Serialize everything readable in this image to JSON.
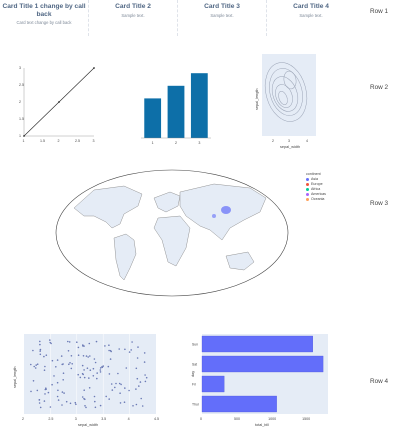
{
  "cards": [
    {
      "title": "Card Title 1 change by call back",
      "text": "Card text change by call back"
    },
    {
      "title": "Card Title 2",
      "text": "Sample text."
    },
    {
      "title": "Card Title 3",
      "text": "Sample text."
    },
    {
      "title": "Card Title 4",
      "text": "Sample text."
    }
  ],
  "rows": [
    "Row 1",
    "Row 2",
    "Row 3",
    "Row 4"
  ],
  "colors": {
    "accent": "#1f77b4",
    "bar": "#0d6fa8",
    "plot_bg": "#e5ecf6",
    "hbar": "#636efa",
    "scatter": "#6b7ab5"
  },
  "line_chart": {
    "type": "line",
    "x": [
      1,
      2,
      3
    ],
    "y": [
      1,
      2,
      3
    ],
    "xticks": [
      "1",
      "1.5",
      "2",
      "2.5",
      "3"
    ],
    "yticks": [
      "1",
      "1.5",
      "2",
      "2.5",
      "3"
    ],
    "xlim": [
      1,
      3
    ],
    "ylim": [
      1,
      3
    ]
  },
  "bar_chart": {
    "type": "bar",
    "categories": [
      "1",
      "2",
      "3"
    ],
    "values": [
      2.2,
      2.9,
      3.6
    ],
    "ylim": [
      0,
      4
    ]
  },
  "density_chart": {
    "type": "heatmap",
    "xlabel": "sepal_width",
    "ylabel": "sepal_length",
    "xticks": [
      "2",
      "3",
      "4"
    ]
  },
  "map": {
    "legend_title": "continent",
    "legend": [
      {
        "name": "Asia",
        "color": "#636efa"
      },
      {
        "name": "Europe",
        "color": "#ef553b"
      },
      {
        "name": "Africa",
        "color": "#00cc96"
      },
      {
        "name": "Americas",
        "color": "#ab63fa"
      },
      {
        "name": "Oceania",
        "color": "#ffa15a"
      }
    ]
  },
  "scatter_chart": {
    "type": "scatter",
    "xlabel": "sepal_width",
    "ylabel": "sepal_length",
    "xticks": [
      "2",
      "2.5",
      "3",
      "3.5",
      "4",
      "4.5"
    ],
    "xlim": [
      2,
      4.5
    ],
    "ylim": [
      4.2,
      8
    ]
  },
  "hbar_chart": {
    "type": "bar",
    "xlabel": "total_bill",
    "ylabel": "day",
    "categories": [
      "Thur",
      "Fri",
      "Sat",
      "Sun"
    ],
    "values": [
      1096,
      326,
      1778,
      1627
    ],
    "xticks": [
      "0",
      "500",
      "1000",
      "1500"
    ],
    "xlim": [
      0,
      1850
    ]
  }
}
